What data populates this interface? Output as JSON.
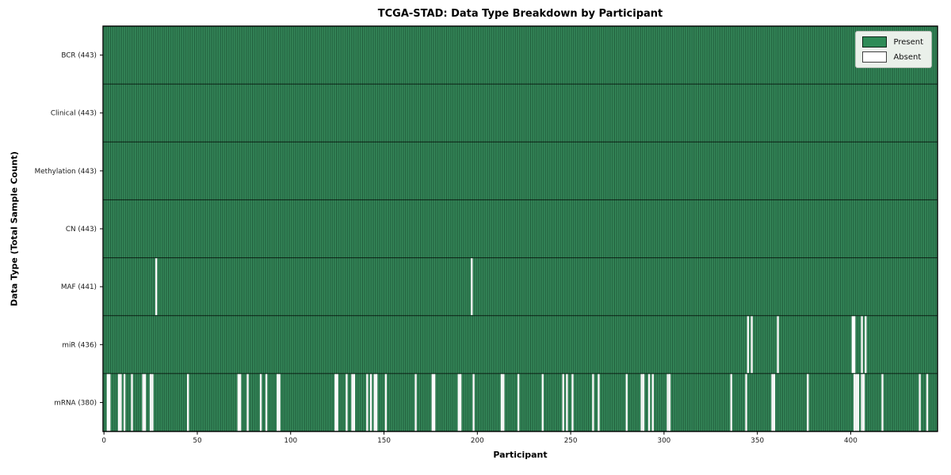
{
  "chart_data": {
    "type": "heatmap",
    "title": "TCGA-STAD: Data Type Breakdown by Participant",
    "xlabel": "Participant",
    "ylabel": "Data Type (Total Sample Count)",
    "n_participants": 443,
    "x_ticks": [
      0,
      50,
      100,
      150,
      200,
      250,
      300,
      350,
      400
    ],
    "legend": [
      {
        "label": "Present",
        "color": "#2e8b57"
      },
      {
        "label": "Absent",
        "color": "#ffffff"
      }
    ],
    "colors": {
      "present": "#2e8b57",
      "present_edge": "rgba(0,0,0,0.45)",
      "absent": "#ffffff",
      "row_divider": "rgba(0,0,0,0.65)",
      "axis": "#000000"
    },
    "grid": "off",
    "legend_position": "upper right",
    "rows": [
      {
        "label": "BCR (443)",
        "data_type": "BCR",
        "present_count": 443,
        "absent_participants": []
      },
      {
        "label": "Clinical (443)",
        "data_type": "Clinical",
        "present_count": 443,
        "absent_participants": []
      },
      {
        "label": "Methylation (443)",
        "data_type": "Methylation",
        "present_count": 443,
        "absent_participants": []
      },
      {
        "label": "CN (443)",
        "data_type": "CN",
        "present_count": 443,
        "absent_participants": []
      },
      {
        "label": "MAF (441)",
        "data_type": "MAF",
        "present_count": 441,
        "absent_participants": [
          28,
          197
        ]
      },
      {
        "label": "miR (436)",
        "data_type": "miR",
        "present_count": 436,
        "absent_participants": [
          345,
          347,
          361,
          401,
          402,
          406,
          408
        ]
      },
      {
        "label": "mRNA (380)",
        "data_type": "mRNA",
        "present_count": 380,
        "absent_participants": [
          2,
          3,
          8,
          9,
          11,
          15,
          21,
          22,
          25,
          26,
          45,
          72,
          73,
          77,
          84,
          87,
          93,
          94,
          124,
          125,
          130,
          133,
          134,
          141,
          143,
          145,
          146,
          151,
          167,
          176,
          177,
          190,
          191,
          198,
          213,
          214,
          222,
          235,
          246,
          248,
          251,
          262,
          265,
          280,
          288,
          289,
          292,
          294,
          302,
          303,
          336,
          344,
          358,
          359,
          377,
          402,
          403,
          404,
          406,
          407,
          417,
          437,
          441
        ]
      }
    ]
  }
}
